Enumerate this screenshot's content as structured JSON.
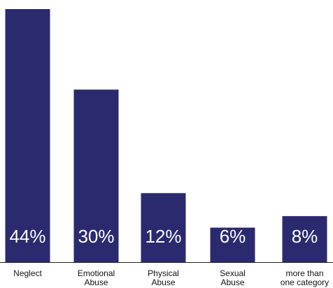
{
  "chart_data": {
    "type": "bar",
    "categories": [
      [
        "Neglect"
      ],
      [
        "Emotional",
        "Abuse"
      ],
      [
        "Physical",
        "Abuse"
      ],
      [
        "Sexual",
        "Abuse"
      ],
      [
        "more than",
        "one category"
      ]
    ],
    "values": [
      44,
      30,
      12,
      6,
      8
    ],
    "value_labels": [
      "44%",
      "30%",
      "12%",
      "6%",
      "8%"
    ],
    "ylim": [
      0,
      44
    ],
    "grid": false,
    "legend": "none",
    "colors": {
      "bar": "#2b2a6e",
      "axis": "#222222",
      "value_text": "#ffffff",
      "category_text": "#111111"
    }
  }
}
